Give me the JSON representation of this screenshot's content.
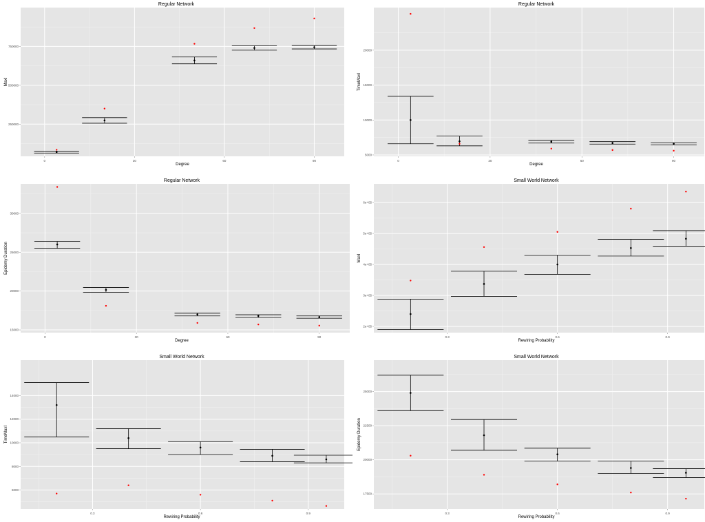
{
  "chart_data": [
    {
      "type": "scatter",
      "title": "Regular Network",
      "xlabel": "Degree",
      "ylabel": "MaxI",
      "xlim": [
        -8,
        100
      ],
      "ylim": [
        43000,
        1000000
      ],
      "xticks": [
        0,
        30,
        60,
        90
      ],
      "xticklabels": [
        "0",
        "30",
        "60",
        "90"
      ],
      "yticks": [
        250000,
        500000,
        750000
      ],
      "yticklabels": [
        "250000",
        "500000",
        "750000"
      ],
      "x_minor_grid": [
        15,
        45,
        75
      ],
      "y_minor_grid": [
        125000,
        375000,
        625000,
        875000
      ],
      "grid": true,
      "points": [
        {
          "x": 4,
          "mean": 70000,
          "lo": 64000,
          "hi": 76000,
          "max": 85000
        },
        {
          "x": 20,
          "mean": 274000,
          "lo": 256000,
          "hi": 292000,
          "max": 350000
        },
        {
          "x": 50,
          "mean": 660000,
          "lo": 638000,
          "hi": 682000,
          "max": 767000
        },
        {
          "x": 70,
          "mean": 740000,
          "lo": 726000,
          "hi": 754000,
          "max": 868000
        },
        {
          "x": 90,
          "mean": 745000,
          "lo": 734000,
          "hi": 756000,
          "max": 930000
        }
      ],
      "capwidth": 7.5
    },
    {
      "type": "scatter",
      "title": "Regular Network",
      "xlabel": "Degree",
      "ylabel": "TimeMaxI",
      "xlim": [
        -8,
        100
      ],
      "ylim": [
        4800,
        26100
      ],
      "xticks": [
        0,
        30,
        60,
        90
      ],
      "xticklabels": [
        "0",
        "30",
        "60",
        "90"
      ],
      "yticks": [
        5000,
        10000,
        15000,
        20000
      ],
      "yticklabels": [
        "5000",
        "10000",
        "15000",
        "20000"
      ],
      "x_minor_grid": [
        15,
        45,
        75
      ],
      "y_minor_grid": [
        7500,
        12500,
        17500,
        22500
      ],
      "grid": true,
      "points": [
        {
          "x": 4,
          "mean": 10000,
          "lo": 6600,
          "hi": 13400,
          "max": 25200
        },
        {
          "x": 20,
          "mean": 6950,
          "lo": 6300,
          "hi": 7700,
          "max": 6600
        },
        {
          "x": 50,
          "mean": 6900,
          "lo": 6700,
          "hi": 7100,
          "max": 5900
        },
        {
          "x": 70,
          "mean": 6700,
          "lo": 6550,
          "hi": 6900,
          "max": 5700
        },
        {
          "x": 90,
          "mean": 6600,
          "lo": 6450,
          "hi": 6750,
          "max": 5600
        }
      ],
      "capwidth": 7.5
    },
    {
      "type": "scatter",
      "title": "Regular Network",
      "xlabel": "Degree",
      "ylabel": "Epidemy Duration",
      "xlim": [
        -8,
        100
      ],
      "ylim": [
        14650,
        33800
      ],
      "xticks": [
        0,
        30,
        60,
        90
      ],
      "xticklabels": [
        "0",
        "30",
        "60",
        "90"
      ],
      "yticks": [
        15000,
        20000,
        25000,
        30000
      ],
      "yticklabels": [
        "15000",
        "20000",
        "25000",
        "30000"
      ],
      "x_minor_grid": [
        15,
        45,
        75
      ],
      "y_minor_grid": [
        17500,
        22500,
        27500,
        32500
      ],
      "grid": true,
      "points": [
        {
          "x": 4,
          "mean": 26000,
          "lo": 25500,
          "hi": 26400,
          "max": 33400
        },
        {
          "x": 20,
          "mean": 20150,
          "lo": 19850,
          "hi": 20450,
          "max": 18100
        },
        {
          "x": 50,
          "mean": 17000,
          "lo": 16800,
          "hi": 17150,
          "max": 15900
        },
        {
          "x": 70,
          "mean": 16800,
          "lo": 16600,
          "hi": 16950,
          "max": 15700
        },
        {
          "x": 90,
          "mean": 16650,
          "lo": 16500,
          "hi": 16800,
          "max": 15550
        }
      ],
      "capwidth": 7.5
    },
    {
      "type": "scatter",
      "title": "Small World Network",
      "xlabel": "Rewiring Probability",
      "ylabel": "MaxI",
      "xlim": [
        0.1,
        1.0
      ],
      "ylim": [
        180000,
        660000
      ],
      "xticks": [
        0.3,
        0.6,
        0.9
      ],
      "xticklabels": [
        "0.3",
        "0.6",
        "0.9"
      ],
      "yticks": [
        200000,
        300000,
        400000,
        500000,
        600000
      ],
      "yticklabels": [
        "2e+05",
        "3e+05",
        "4e+05",
        "5e+05",
        "6e+05"
      ],
      "x_minor_grid": [
        0.15,
        0.45,
        0.75
      ],
      "y_minor_grid": [
        250000,
        350000,
        450000,
        550000
      ],
      "grid": true,
      "points": [
        {
          "x": 0.2,
          "mean": 240000,
          "lo": 190000,
          "hi": 288000,
          "max": 348000
        },
        {
          "x": 0.4,
          "mean": 337000,
          "lo": 297000,
          "hi": 378000,
          "max": 456000
        },
        {
          "x": 0.6,
          "mean": 400000,
          "lo": 368000,
          "hi": 430000,
          "max": 505000
        },
        {
          "x": 0.8,
          "mean": 453000,
          "lo": 427000,
          "hi": 481000,
          "max": 580000
        },
        {
          "x": 0.95,
          "mean": 483000,
          "lo": 459000,
          "hi": 509000,
          "max": 635000
        }
      ],
      "capwidth": 0.09
    },
    {
      "type": "scatter",
      "title": "Small World Network",
      "xlabel": "Rewiring Probability",
      "ylabel": "TimeMaxI",
      "xlim": [
        0.1,
        1.0
      ],
      "ylim": [
        4400,
        17000
      ],
      "xticks": [
        0.3,
        0.6,
        0.9
      ],
      "xticklabels": [
        "0.3",
        "0.6",
        "0.9"
      ],
      "yticks": [
        6000,
        8000,
        10000,
        12000,
        14000
      ],
      "yticklabels": [
        "6000",
        "8000",
        "10000",
        "12000",
        "14000"
      ],
      "x_minor_grid": [
        0.15,
        0.45,
        0.75
      ],
      "y_minor_grid": [
        5000,
        7000,
        9000,
        11000,
        13000
      ],
      "grid": true,
      "points": [
        {
          "x": 0.2,
          "mean": 13200,
          "lo": 10500,
          "hi": 15100,
          "max": 5700
        },
        {
          "x": 0.4,
          "mean": 10400,
          "lo": 9500,
          "hi": 11200,
          "max": 6400
        },
        {
          "x": 0.6,
          "mean": 9600,
          "lo": 9000,
          "hi": 10100,
          "max": 5600
        },
        {
          "x": 0.8,
          "mean": 8900,
          "lo": 8400,
          "hi": 9450,
          "max": 5100
        },
        {
          "x": 0.95,
          "mean": 8600,
          "lo": 8300,
          "hi": 8950,
          "max": 4650
        }
      ],
      "capwidth": 0.09
    },
    {
      "type": "scatter",
      "title": "Small World Network",
      "xlabel": "Rewiring Probability",
      "ylabel": "Epidemy Duration",
      "xlim": [
        0.1,
        1.0
      ],
      "ylim": [
        16400,
        27300
      ],
      "xticks": [
        0.3,
        0.6,
        0.9
      ],
      "xticklabels": [
        "0.3",
        "0.6",
        "0.9"
      ],
      "yticks": [
        17500,
        20000,
        22500,
        25000
      ],
      "yticklabels": [
        "17500",
        "20000",
        "22500",
        "25000"
      ],
      "x_minor_grid": [
        0.15,
        0.45,
        0.75
      ],
      "y_minor_grid": [
        18750,
        21250,
        23750,
        26250
      ],
      "grid": true,
      "points": [
        {
          "x": 0.2,
          "mean": 24900,
          "lo": 23600,
          "hi": 26200,
          "max": 20300
        },
        {
          "x": 0.4,
          "mean": 21800,
          "lo": 20700,
          "hi": 22950,
          "max": 18900
        },
        {
          "x": 0.6,
          "mean": 20400,
          "lo": 19900,
          "hi": 20850,
          "max": 18200
        },
        {
          "x": 0.8,
          "mean": 19400,
          "lo": 19000,
          "hi": 19900,
          "max": 17600
        },
        {
          "x": 0.95,
          "mean": 19050,
          "lo": 18700,
          "hi": 19350,
          "max": 17150
        }
      ],
      "capwidth": 0.09
    }
  ],
  "colors": {
    "panel_bg": "#e5e5e5",
    "grid_major": "#ffffff",
    "grid_minor": "#f2f2f2",
    "errorbar": "#000000",
    "mean_point": "#000000",
    "max_point": "#ff0000"
  }
}
